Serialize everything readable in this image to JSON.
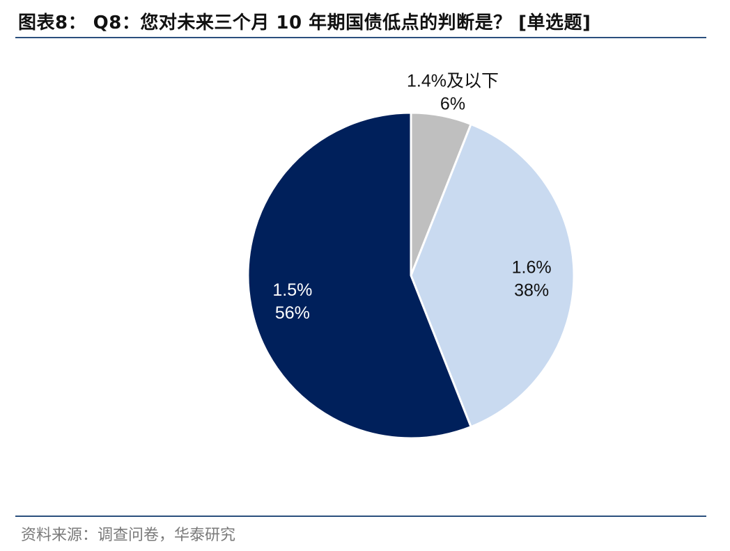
{
  "header": {
    "title": "图表8：  Q8：您对未来三个月 10 年期国债低点的判断是？  [单选题]"
  },
  "footer": {
    "source": "资料来源：调查问卷，华泰研究"
  },
  "colors": {
    "rule": "#2a4f7d",
    "slice_1_4": "#bfbfbf",
    "slice_1_6": "#c9daf0",
    "slice_1_5": "#00205b",
    "label_dark": "#111111",
    "label_light": "#ffffff"
  },
  "chart_data": {
    "type": "pie",
    "title": "",
    "slices": [
      {
        "label": "1.4%及以下",
        "value": 6,
        "value_label": "6%",
        "color": "#bfbfbf",
        "label_color": "#111111",
        "label_placement": "outside"
      },
      {
        "label": "1.6%",
        "value": 38,
        "value_label": "38%",
        "color": "#c9daf0",
        "label_color": "#111111",
        "label_placement": "inside"
      },
      {
        "label": "1.5%",
        "value": 56,
        "value_label": "56%",
        "color": "#00205b",
        "label_color": "#ffffff",
        "label_placement": "inside"
      }
    ],
    "start_angle": "12 o'clock",
    "direction": "clockwise",
    "legend": "none"
  }
}
